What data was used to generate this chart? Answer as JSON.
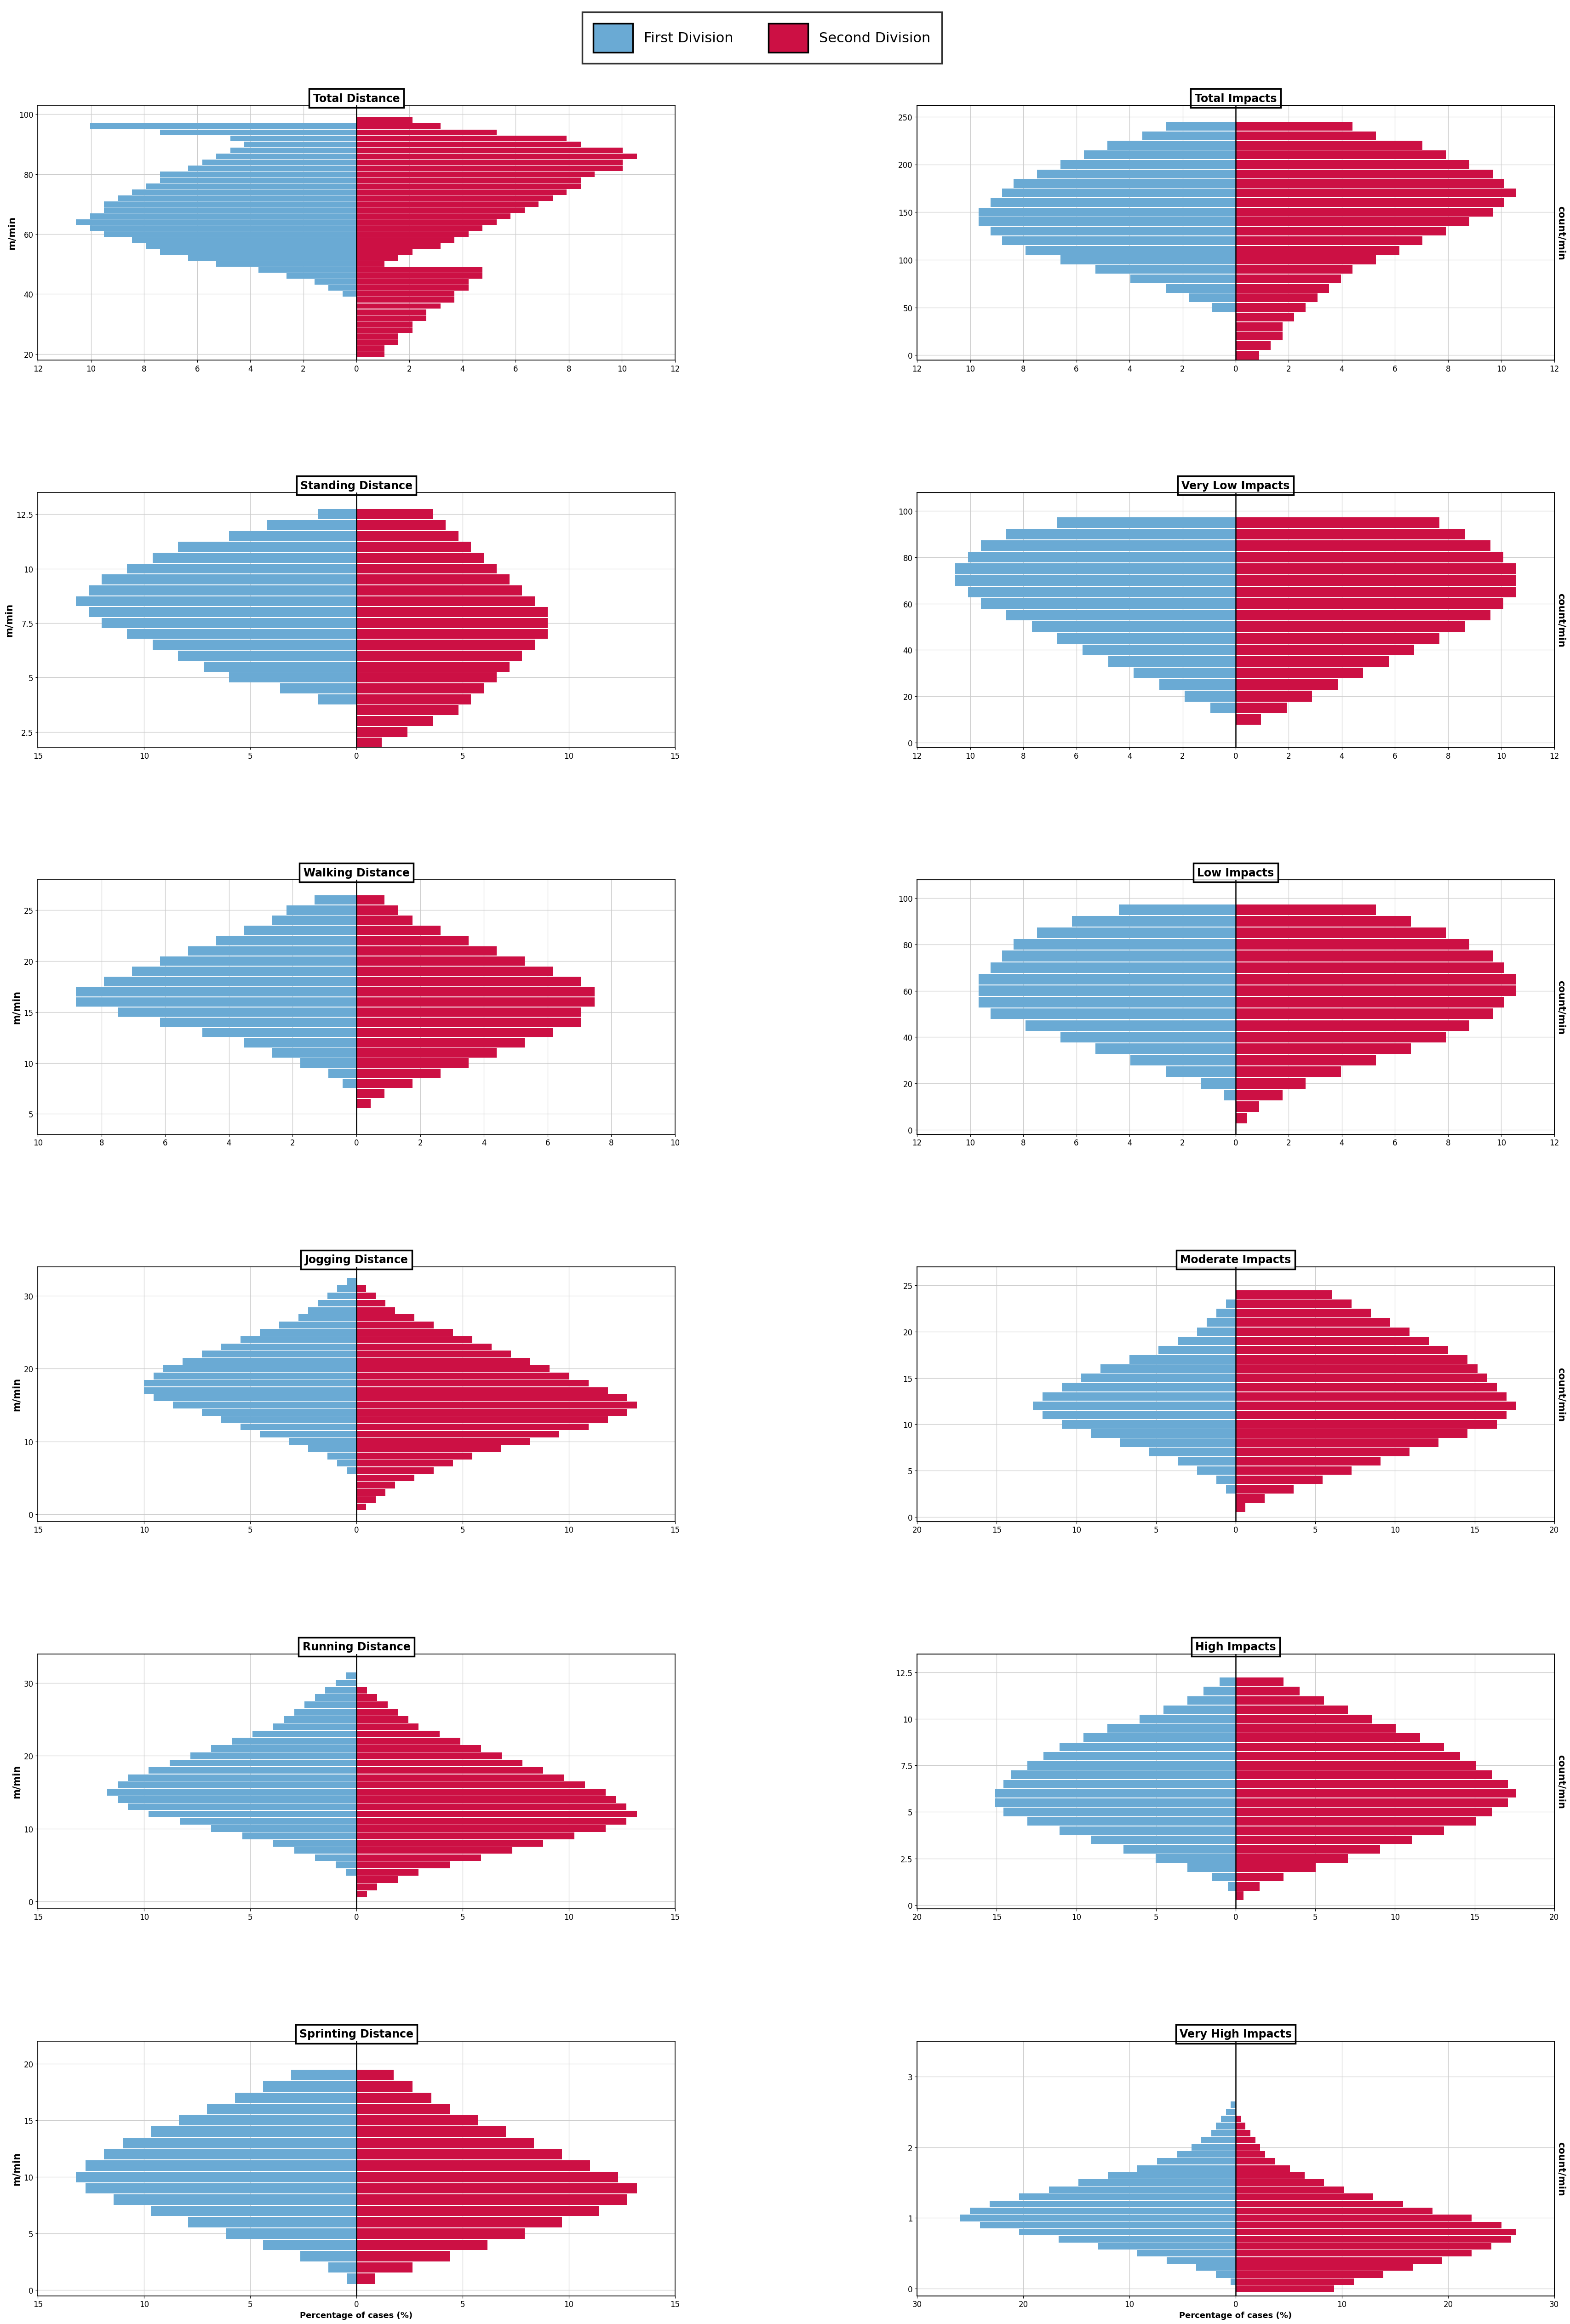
{
  "blue_color": "#6aaad4",
  "red_color": "#cc1044",
  "grid_color": "#cccccc",
  "panels": [
    {
      "title": "Total Distance",
      "ylabel": "m/min",
      "ylabel_right": "",
      "col": 0,
      "row": 0,
      "xlim": 12,
      "xtick_step": 2,
      "yticks": [
        20,
        40,
        60,
        80,
        100
      ],
      "ymin": 18,
      "ymax": 103,
      "bin_centers": [
        20,
        22,
        24,
        26,
        28,
        30,
        32,
        34,
        36,
        38,
        40,
        42,
        44,
        46,
        48,
        50,
        52,
        54,
        56,
        58,
        60,
        62,
        64,
        66,
        68,
        70,
        72,
        74,
        76,
        78,
        80,
        82,
        84,
        86,
        88,
        90,
        92,
        94,
        96,
        98,
        100
      ],
      "blue": [
        0,
        0,
        0,
        0,
        0,
        0,
        0,
        0,
        0,
        0,
        0.5,
        1,
        1.5,
        2.5,
        3.5,
        5,
        6,
        7,
        7.5,
        8,
        9,
        9.5,
        10,
        9.5,
        9,
        9,
        8.5,
        8,
        7.5,
        7,
        7,
        6,
        5.5,
        5,
        4.5,
        4,
        4.5,
        7,
        9.5,
        0,
        0
      ],
      "red": [
        1,
        1,
        1.5,
        1.5,
        2,
        2,
        2.5,
        2.5,
        3,
        3.5,
        3.5,
        4,
        4,
        4.5,
        4.5,
        1,
        1.5,
        2,
        3,
        3.5,
        4,
        4.5,
        5,
        5.5,
        6,
        6.5,
        7,
        7.5,
        8,
        8,
        8.5,
        9.5,
        9.5,
        10,
        9.5,
        8,
        7.5,
        5,
        3,
        2,
        0
      ]
    },
    {
      "title": "Total Impacts",
      "ylabel": "",
      "ylabel_right": "count/min",
      "col": 1,
      "row": 0,
      "xlim": 12,
      "xtick_step": 2,
      "yticks": [
        0,
        50,
        100,
        150,
        200,
        250
      ],
      "ymin": -5,
      "ymax": 262,
      "bin_centers": [
        0,
        10,
        20,
        30,
        40,
        50,
        60,
        70,
        80,
        90,
        100,
        110,
        120,
        130,
        140,
        150,
        160,
        170,
        180,
        190,
        200,
        210,
        220,
        230,
        240,
        250
      ],
      "blue": [
        0,
        0,
        0,
        0,
        0,
        1,
        2,
        3,
        4.5,
        6,
        7.5,
        9,
        10,
        10.5,
        11,
        11,
        10.5,
        10,
        9.5,
        8.5,
        7.5,
        6.5,
        5.5,
        4,
        3,
        0
      ],
      "red": [
        1,
        1.5,
        2,
        2,
        2.5,
        3,
        3.5,
        4,
        4.5,
        5,
        6,
        7,
        8,
        9,
        10,
        11,
        11.5,
        12,
        11.5,
        11,
        10,
        9,
        8,
        6,
        5,
        0
      ]
    },
    {
      "title": "Standing Distance",
      "ylabel": "m/min",
      "ylabel_right": "",
      "col": 0,
      "row": 1,
      "xlim": 15,
      "xtick_step": 5,
      "yticks": [
        2.5,
        5.0,
        7.5,
        10.0,
        12.5
      ],
      "ymin": 1.8,
      "ymax": 13.5,
      "bin_centers": [
        2.0,
        2.5,
        3.0,
        3.5,
        4.0,
        4.5,
        5.0,
        5.5,
        6.0,
        6.5,
        7.0,
        7.5,
        8.0,
        8.5,
        9.0,
        9.5,
        10.0,
        10.5,
        11.0,
        11.5,
        12.0,
        12.5,
        13.0
      ],
      "blue": [
        0,
        0,
        0,
        0,
        1.5,
        3,
        5,
        6,
        7,
        8,
        9,
        10,
        10.5,
        11,
        10.5,
        10,
        9,
        8,
        7,
        5,
        3.5,
        1.5,
        0
      ],
      "red": [
        1,
        2,
        3,
        4,
        4.5,
        5,
        5.5,
        6,
        6.5,
        7,
        7.5,
        7.5,
        7.5,
        7,
        6.5,
        6,
        5.5,
        5,
        4.5,
        4,
        3.5,
        3,
        0
      ]
    },
    {
      "title": "Very Low Impacts",
      "ylabel": "",
      "ylabel_right": "count/min",
      "col": 1,
      "row": 1,
      "xlim": 12,
      "xtick_step": 2,
      "yticks": [
        0,
        20,
        40,
        60,
        80,
        100
      ],
      "ymin": -2,
      "ymax": 108,
      "bin_centers": [
        0,
        5,
        10,
        15,
        20,
        25,
        30,
        35,
        40,
        45,
        50,
        55,
        60,
        65,
        70,
        75,
        80,
        85,
        90,
        95,
        100
      ],
      "blue": [
        0,
        0,
        0,
        1,
        2,
        3,
        4,
        5,
        6,
        7,
        8,
        9,
        10,
        10.5,
        11,
        11,
        10.5,
        10,
        9,
        7,
        0
      ],
      "red": [
        0,
        0,
        1,
        2,
        3,
        4,
        5,
        6,
        7,
        8,
        9,
        10,
        10.5,
        11,
        11,
        11,
        10.5,
        10,
        9,
        8,
        0
      ]
    },
    {
      "title": "Walking Distance",
      "ylabel": "m/min",
      "ylabel_right": "",
      "col": 0,
      "row": 2,
      "xlim": 10,
      "xtick_step": 2,
      "yticks": [
        5,
        10,
        15,
        20,
        25
      ],
      "ymin": 3,
      "ymax": 28,
      "bin_centers": [
        3,
        4,
        5,
        6,
        7,
        8,
        9,
        10,
        11,
        12,
        13,
        14,
        15,
        16,
        17,
        18,
        19,
        20,
        21,
        22,
        23,
        24,
        25,
        26,
        27
      ],
      "blue": [
        0,
        0,
        0,
        0,
        0,
        0.5,
        1,
        2,
        3,
        4,
        5.5,
        7,
        8.5,
        10,
        10,
        9,
        8,
        7,
        6,
        5,
        4,
        3,
        2.5,
        1.5,
        0
      ],
      "red": [
        0,
        0,
        0,
        0.5,
        1,
        2,
        3,
        4,
        5,
        6,
        7,
        8,
        8,
        8.5,
        8.5,
        8,
        7,
        6,
        5,
        4,
        3,
        2,
        1.5,
        1,
        0
      ]
    },
    {
      "title": "Low Impacts",
      "ylabel": "",
      "ylabel_right": "count/min",
      "col": 1,
      "row": 2,
      "xlim": 12,
      "xtick_step": 2,
      "yticks": [
        0,
        20,
        40,
        60,
        80,
        100
      ],
      "ymin": -2,
      "ymax": 108,
      "bin_centers": [
        0,
        5,
        10,
        15,
        20,
        25,
        30,
        35,
        40,
        45,
        50,
        55,
        60,
        65,
        70,
        75,
        80,
        85,
        90,
        95,
        100
      ],
      "blue": [
        0,
        0,
        0,
        0.5,
        1.5,
        3,
        4.5,
        6,
        7.5,
        9,
        10.5,
        11,
        11,
        11,
        10.5,
        10,
        9.5,
        8.5,
        7,
        5,
        0
      ],
      "red": [
        0,
        0.5,
        1,
        2,
        3,
        4.5,
        6,
        7.5,
        9,
        10,
        11,
        11.5,
        12,
        12,
        11.5,
        11,
        10,
        9,
        7.5,
        6,
        0
      ]
    },
    {
      "title": "Jogging Distance",
      "ylabel": "m/min",
      "ylabel_right": "",
      "col": 0,
      "row": 3,
      "xlim": 15,
      "xtick_step": 5,
      "yticks": [
        0,
        10,
        20,
        30
      ],
      "ymin": -1,
      "ymax": 34,
      "bin_centers": [
        0,
        1,
        2,
        3,
        4,
        5,
        6,
        7,
        8,
        9,
        10,
        11,
        12,
        13,
        14,
        15,
        16,
        17,
        18,
        19,
        20,
        21,
        22,
        23,
        24,
        25,
        26,
        27,
        28,
        29,
        30,
        31,
        32,
        33
      ],
      "blue": [
        0,
        0,
        0,
        0,
        0,
        0,
        0.5,
        1,
        1.5,
        2.5,
        3.5,
        5,
        6,
        7,
        8,
        9.5,
        10.5,
        11,
        11,
        10.5,
        10,
        9,
        8,
        7,
        6,
        5,
        4,
        3,
        2.5,
        2,
        1.5,
        1,
        0.5,
        0
      ],
      "red": [
        0,
        0.5,
        1,
        1.5,
        2,
        3,
        4,
        5,
        6,
        7.5,
        9,
        10.5,
        12,
        13,
        14,
        14.5,
        14,
        13,
        12,
        11,
        10,
        9,
        8,
        7,
        6,
        5,
        4,
        3,
        2,
        1.5,
        1,
        0.5,
        0,
        0
      ]
    },
    {
      "title": "Moderate Impacts",
      "ylabel": "",
      "ylabel_right": "count/min",
      "col": 1,
      "row": 3,
      "xlim": 20,
      "xtick_step": 5,
      "yticks": [
        0,
        5,
        10,
        15,
        20,
        25
      ],
      "ymin": -0.5,
      "ymax": 27,
      "bin_centers": [
        0,
        1,
        2,
        3,
        4,
        5,
        6,
        7,
        8,
        9,
        10,
        11,
        12,
        13,
        14,
        15,
        16,
        17,
        18,
        19,
        20,
        21,
        22,
        23,
        24,
        25
      ],
      "blue": [
        0,
        0,
        0,
        0.5,
        1,
        2,
        3,
        4.5,
        6,
        7.5,
        9,
        10,
        10.5,
        10,
        9,
        8,
        7,
        5.5,
        4,
        3,
        2,
        1.5,
        1,
        0.5,
        0,
        0
      ],
      "red": [
        0,
        0.5,
        1.5,
        3,
        4.5,
        6,
        7.5,
        9,
        10.5,
        12,
        13.5,
        14,
        14.5,
        14,
        13.5,
        13,
        12.5,
        12,
        11,
        10,
        9,
        8,
        7,
        6,
        5,
        0
      ]
    },
    {
      "title": "Running Distance",
      "ylabel": "m/min",
      "ylabel_right": "",
      "col": 0,
      "row": 4,
      "xlim": 15,
      "xtick_step": 5,
      "yticks": [
        0,
        10,
        20,
        30
      ],
      "ymin": -1,
      "ymax": 34,
      "bin_centers": [
        0,
        1,
        2,
        3,
        4,
        5,
        6,
        7,
        8,
        9,
        10,
        11,
        12,
        13,
        14,
        15,
        16,
        17,
        18,
        19,
        20,
        21,
        22,
        23,
        24,
        25,
        26,
        27,
        28,
        29,
        30,
        31,
        32,
        33
      ],
      "blue": [
        0,
        0,
        0,
        0,
        0.5,
        1,
        2,
        3,
        4,
        5.5,
        7,
        8.5,
        10,
        11,
        11.5,
        12,
        11.5,
        11,
        10,
        9,
        8,
        7,
        6,
        5,
        4,
        3.5,
        3,
        2.5,
        2,
        1.5,
        1,
        0.5,
        0,
        0
      ],
      "red": [
        0,
        0.5,
        1,
        2,
        3,
        4.5,
        6,
        7.5,
        9,
        10.5,
        12,
        13,
        13.5,
        13,
        12.5,
        12,
        11,
        10,
        9,
        8,
        7,
        6,
        5,
        4,
        3,
        2.5,
        2,
        1.5,
        1,
        0.5,
        0,
        0,
        0,
        0
      ]
    },
    {
      "title": "High Impacts",
      "ylabel": "",
      "ylabel_right": "count/min",
      "col": 1,
      "row": 4,
      "xlim": 20,
      "xtick_step": 5,
      "yticks": [
        0,
        2.5,
        5.0,
        7.5,
        10.0,
        12.5
      ],
      "ymin": -0.2,
      "ymax": 13.5,
      "bin_centers": [
        0,
        0.5,
        1.0,
        1.5,
        2.0,
        2.5,
        3.0,
        3.5,
        4.0,
        4.5,
        5.0,
        5.5,
        6.0,
        6.5,
        7.0,
        7.5,
        8.0,
        8.5,
        9.0,
        9.5,
        10.0,
        10.5,
        11.0,
        11.5,
        12.0,
        12.5
      ],
      "blue": [
        0,
        0,
        0.5,
        1.5,
        3,
        5,
        7,
        9,
        11,
        13,
        14.5,
        15,
        15,
        14.5,
        14,
        13,
        12,
        11,
        9.5,
        8,
        6,
        4.5,
        3,
        2,
        1,
        0
      ],
      "red": [
        0,
        0.5,
        1.5,
        3,
        5,
        7,
        9,
        11,
        13,
        15,
        16,
        17,
        17.5,
        17,
        16,
        15,
        14,
        13,
        11.5,
        10,
        8.5,
        7,
        5.5,
        4,
        3,
        0
      ]
    },
    {
      "title": "Sprinting Distance",
      "ylabel": "m/min",
      "ylabel_right": "",
      "col": 0,
      "row": 5,
      "xlim": 15,
      "xtick_step": 5,
      "yticks": [
        0,
        5,
        10,
        15,
        20
      ],
      "ymin": -0.5,
      "ymax": 22,
      "bin_centers": [
        0,
        1,
        2,
        3,
        4,
        5,
        6,
        7,
        8,
        9,
        10,
        11,
        12,
        13,
        14,
        15,
        16,
        17,
        18,
        19,
        20
      ],
      "blue": [
        0,
        0.5,
        1.5,
        3,
        5,
        7,
        9,
        11,
        13,
        14.5,
        15,
        14.5,
        13.5,
        12.5,
        11,
        9.5,
        8,
        6.5,
        5,
        3.5,
        0
      ],
      "red": [
        0,
        1,
        3,
        5,
        7,
        9,
        11,
        13,
        14.5,
        15,
        14,
        12.5,
        11,
        9.5,
        8,
        6.5,
        5,
        4,
        3,
        2,
        0
      ]
    },
    {
      "title": "Very High Impacts",
      "ylabel": "",
      "ylabel_right": "count/min",
      "col": 1,
      "row": 5,
      "xlim": 30,
      "xtick_step": 10,
      "yticks": [
        0,
        1,
        2,
        3
      ],
      "ymin": -0.1,
      "ymax": 3.5,
      "bin_centers": [
        0.0,
        0.1,
        0.2,
        0.3,
        0.4,
        0.5,
        0.6,
        0.7,
        0.8,
        0.9,
        1.0,
        1.1,
        1.2,
        1.3,
        1.4,
        1.5,
        1.6,
        1.7,
        1.8,
        1.9,
        2.0,
        2.1,
        2.2,
        2.3,
        2.4,
        2.5,
        2.6,
        2.7,
        2.8,
        2.9,
        3.0
      ],
      "blue": [
        0,
        0.5,
        2,
        4,
        7,
        10,
        14,
        18,
        22,
        26,
        28,
        27,
        25,
        22,
        19,
        16,
        13,
        10,
        8,
        6,
        4.5,
        3.5,
        2.5,
        2,
        1.5,
        1,
        0.5,
        0,
        0,
        0,
        0
      ],
      "red": [
        10,
        12,
        15,
        18,
        21,
        24,
        26,
        28,
        28.5,
        27,
        24,
        20,
        17,
        14,
        11,
        9,
        7,
        5.5,
        4,
        3,
        2.5,
        2,
        1.5,
        1,
        0.5,
        0,
        0,
        0,
        0,
        0,
        0
      ]
    }
  ]
}
